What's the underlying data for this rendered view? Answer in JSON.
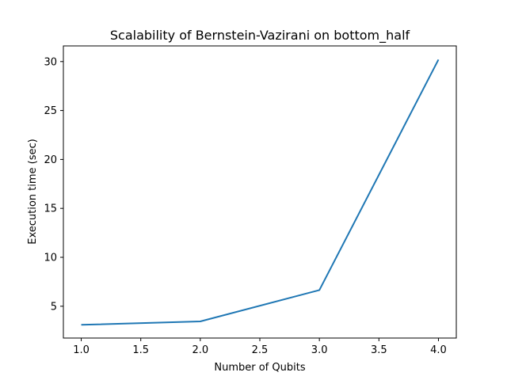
{
  "chart_data": {
    "type": "line",
    "title": "Scalability of Bernstein-Vazirani on bottom_half",
    "xlabel": "Number of Qubits",
    "ylabel": "Execution time (sec)",
    "x": [
      1,
      2,
      3,
      4
    ],
    "series": [
      {
        "values": [
          3.1,
          3.45,
          6.65,
          30.2
        ],
        "color": "#1f77b4"
      }
    ],
    "xlim": [
      0.85,
      4.15
    ],
    "ylim": [
      1.75,
      31.6
    ],
    "xticks": [
      1.0,
      1.5,
      2.0,
      2.5,
      3.0,
      3.5,
      4.0
    ],
    "xtick_labels": [
      "1.0",
      "1.5",
      "2.0",
      "2.5",
      "3.0",
      "3.5",
      "4.0"
    ],
    "yticks": [
      5,
      10,
      15,
      20,
      25,
      30
    ],
    "ytick_labels": [
      "5",
      "10",
      "15",
      "20",
      "25",
      "30"
    ],
    "grid": false,
    "legend": "none"
  }
}
